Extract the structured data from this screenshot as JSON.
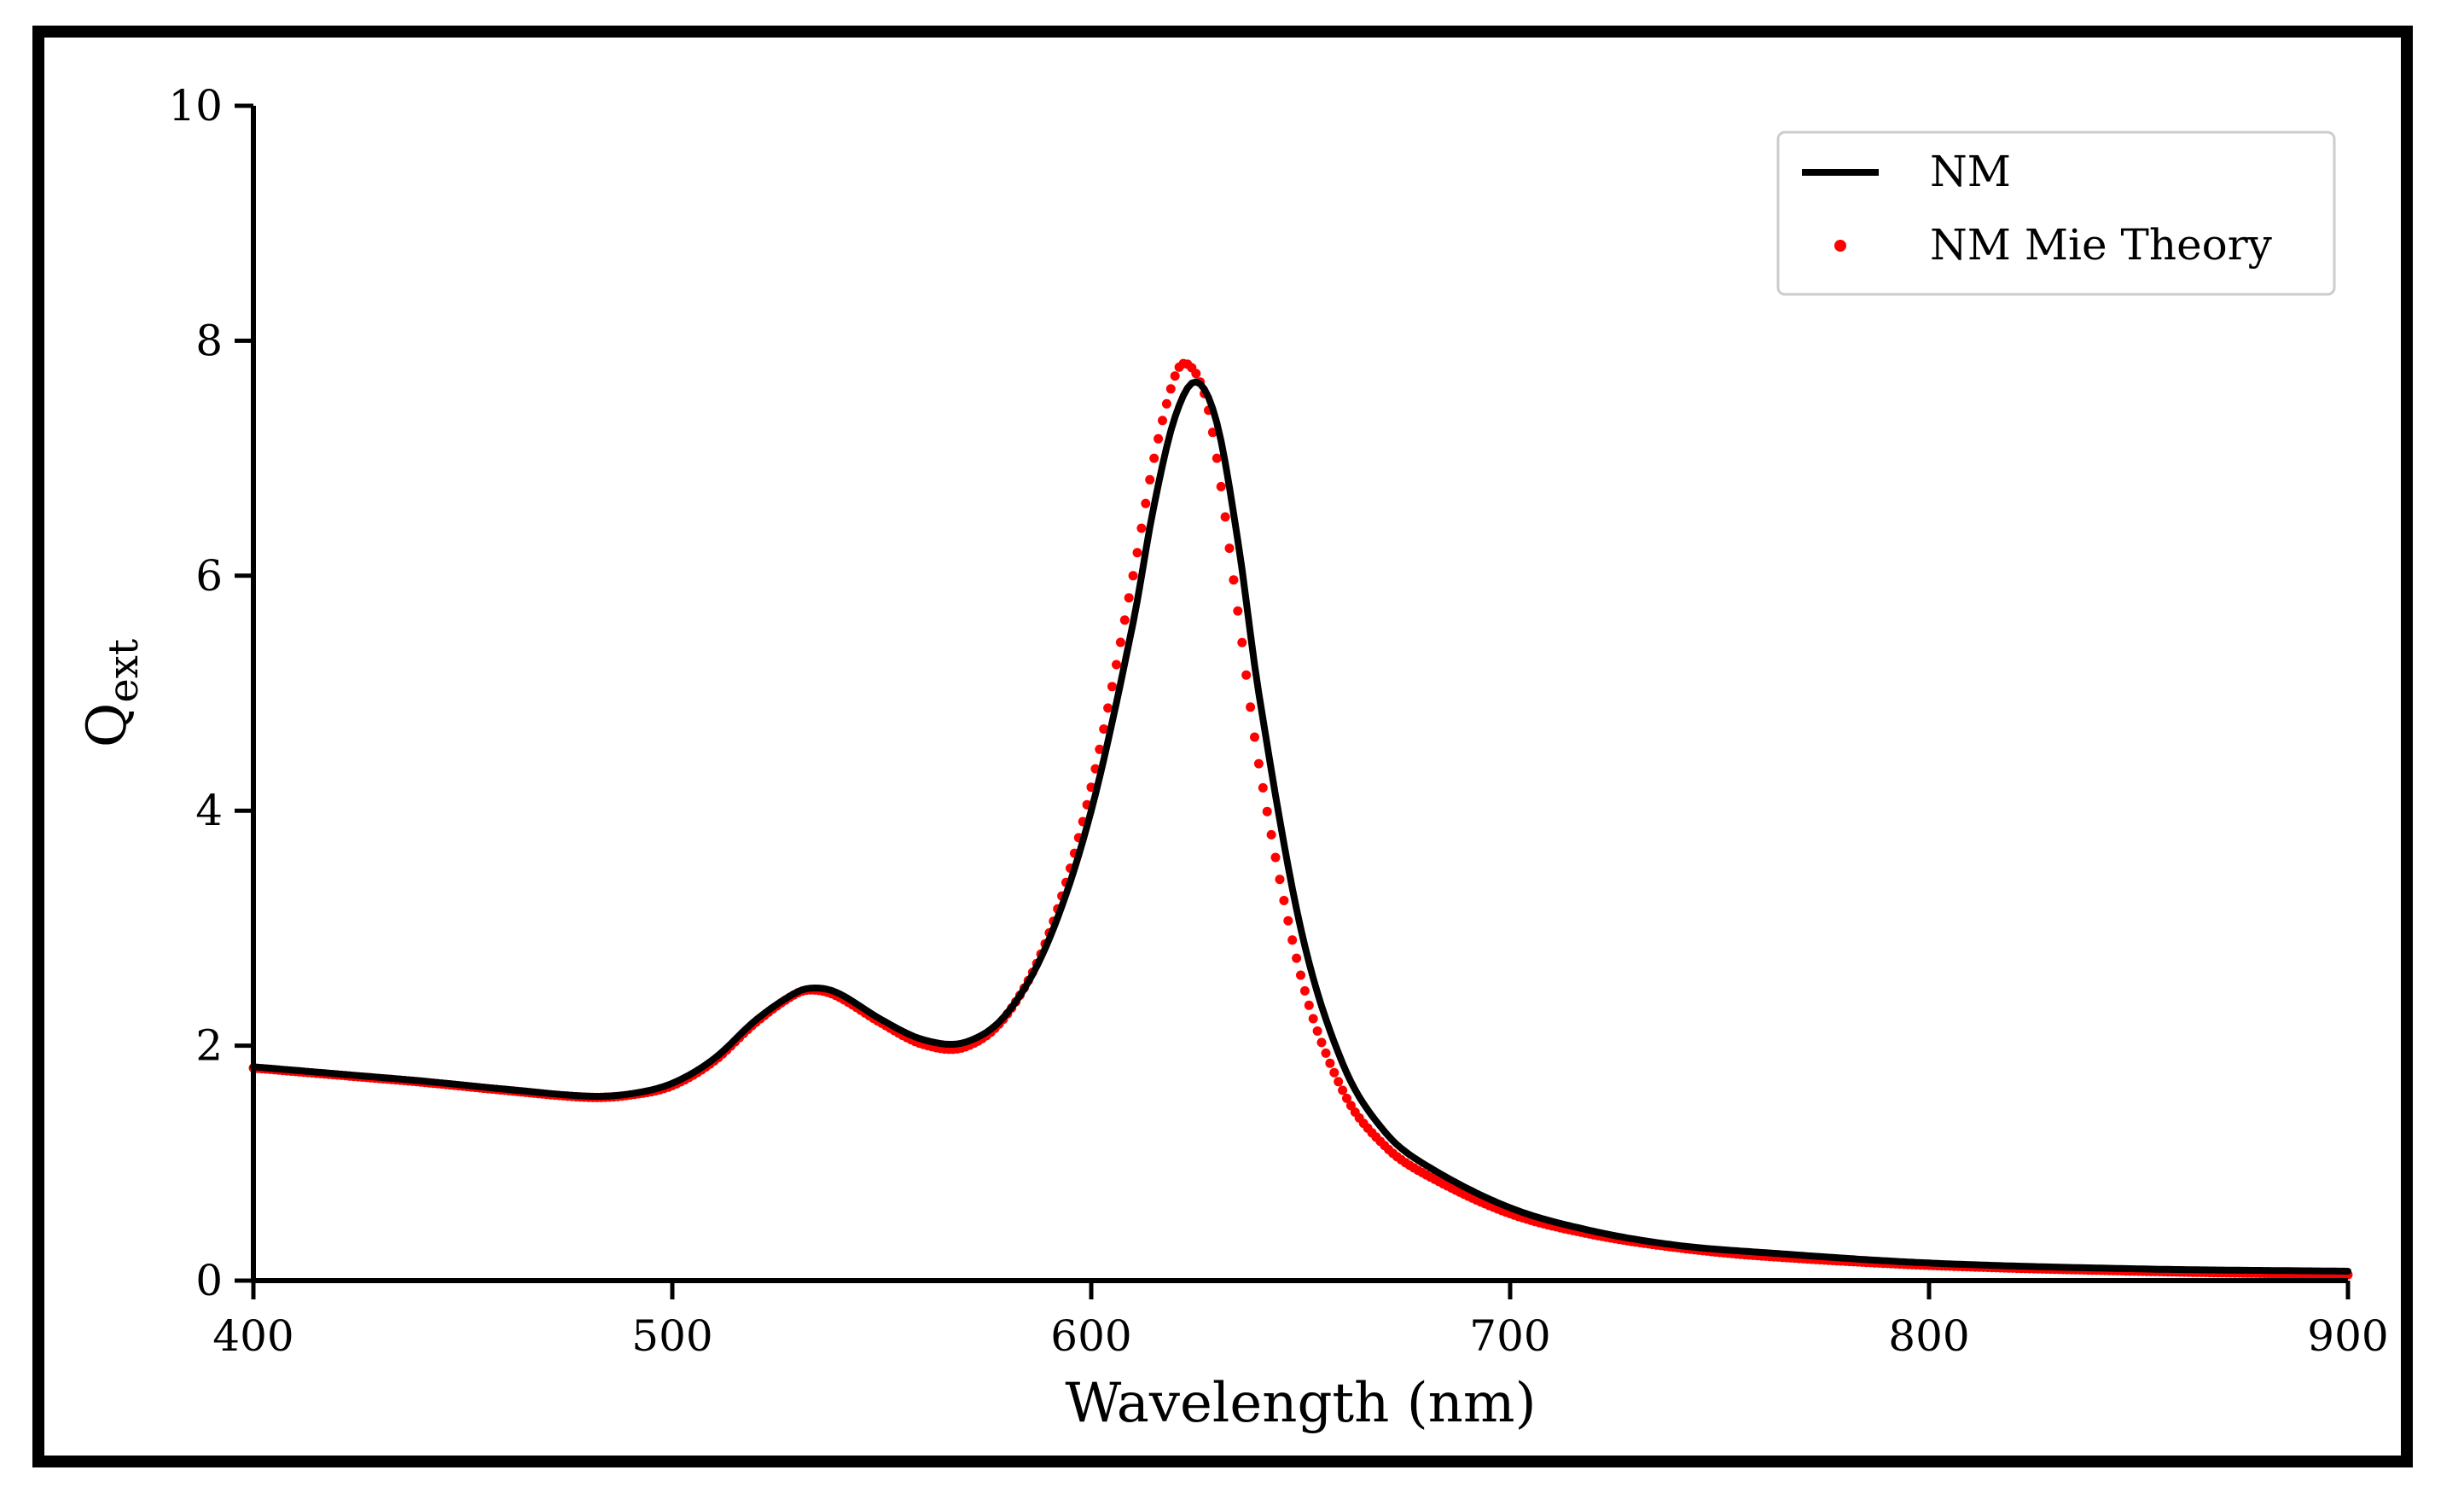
{
  "chart_data": {
    "type": "line",
    "title": "",
    "xlabel": "Wavelength (nm)",
    "ylabel_main": "Q",
    "ylabel_sub": "ext",
    "xlim": [
      400,
      900
    ],
    "ylim": [
      0,
      10
    ],
    "xticks": [
      400,
      500,
      600,
      700,
      800,
      900
    ],
    "yticks": [
      0,
      2,
      4,
      6,
      8,
      10
    ],
    "grid": false,
    "legend_position": "top-right",
    "series": [
      {
        "name": "NM",
        "style": "line",
        "color": "#000000",
        "x": [
          400,
          420,
          440,
          460,
          480,
          490,
          500,
          510,
          520,
          530,
          535,
          540,
          550,
          560,
          570,
          580,
          590,
          600,
          610,
          615,
          620,
          625,
          630,
          635,
          640,
          650,
          660,
          670,
          680,
          700,
          720,
          740,
          760,
          800,
          850,
          900
        ],
        "y": [
          1.82,
          1.76,
          1.7,
          1.63,
          1.57,
          1.59,
          1.68,
          1.89,
          2.22,
          2.46,
          2.49,
          2.44,
          2.22,
          2.05,
          2.03,
          2.28,
          2.91,
          4.0,
          5.6,
          6.6,
          7.35,
          7.65,
          7.3,
          6.3,
          5.0,
          3.0,
          1.85,
          1.27,
          0.98,
          0.62,
          0.42,
          0.3,
          0.24,
          0.15,
          0.1,
          0.08
        ]
      },
      {
        "name": "NM Mie Theory",
        "style": "dots",
        "color": "#ff0000",
        "x": [
          400,
          420,
          440,
          460,
          480,
          490,
          500,
          510,
          520,
          530,
          535,
          540,
          550,
          560,
          570,
          580,
          590,
          600,
          610,
          615,
          620,
          623,
          627,
          630,
          635,
          640,
          650,
          660,
          670,
          680,
          700,
          720,
          740,
          760,
          800,
          850,
          900
        ],
        "y": [
          1.81,
          1.75,
          1.69,
          1.62,
          1.56,
          1.58,
          1.66,
          1.87,
          2.2,
          2.45,
          2.47,
          2.41,
          2.19,
          2.01,
          1.99,
          2.27,
          2.96,
          4.2,
          6.0,
          7.0,
          7.7,
          7.8,
          7.55,
          7.0,
          5.7,
          4.4,
          2.6,
          1.62,
          1.15,
          0.9,
          0.57,
          0.39,
          0.28,
          0.21,
          0.13,
          0.08,
          0.05
        ]
      }
    ]
  }
}
